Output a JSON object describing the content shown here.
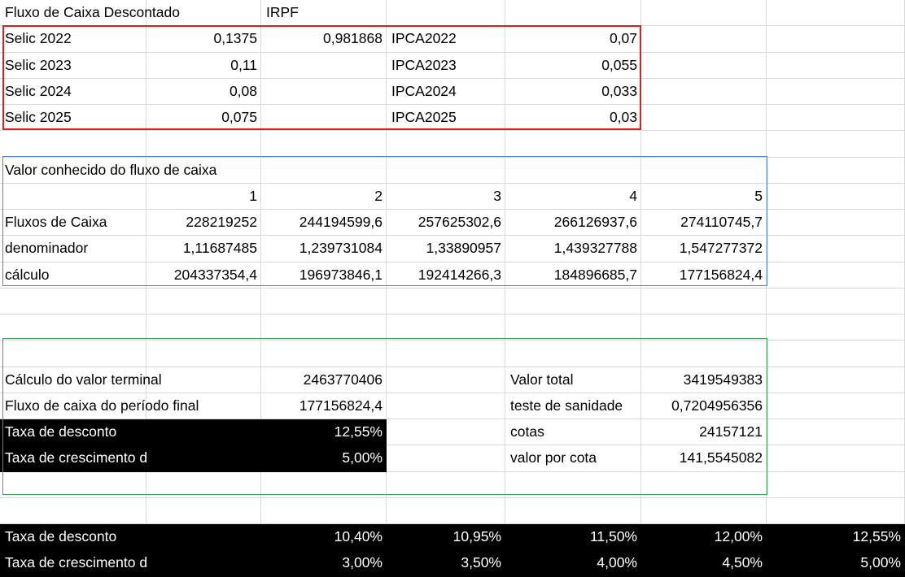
{
  "sheet": {
    "r1": {
      "a": "Fluxo de Caixa Descontado",
      "c": "IRPF"
    },
    "rates": [
      {
        "label": "Selic 2022",
        "value": "0,1375",
        "irpf": "0,981868",
        "ipca_label": "IPCA2022",
        "ipca_value": "0,07"
      },
      {
        "label": "Selic 2023",
        "value": "0,11",
        "irpf": "",
        "ipca_label": "IPCA2023",
        "ipca_value": "0,055"
      },
      {
        "label": "Selic 2024",
        "value": "0,08",
        "irpf": "",
        "ipca_label": "IPCA2024",
        "ipca_value": "0,033"
      },
      {
        "label": "Selic 2025",
        "value": "0,075",
        "irpf": "",
        "ipca_label": "IPCA2025",
        "ipca_value": "0,03"
      }
    ],
    "cashflow": {
      "title": "Valor conhecido do fluxo de caixa",
      "periods": [
        "1",
        "2",
        "3",
        "4",
        "5"
      ],
      "rows": [
        {
          "label": "Fluxos de Caixa",
          "values": [
            "228219252",
            "244194599,6",
            "257625302,6",
            "266126937,6",
            "274110745,7"
          ]
        },
        {
          "label": "denominador",
          "values": [
            "1,11687485",
            "1,239731084",
            "1,33890957",
            "1,439327788",
            "1,547277372"
          ]
        },
        {
          "label": "cálculo",
          "values": [
            "204337354,4",
            "196973846,1",
            "192414266,3",
            "184896685,7",
            "177156824,4"
          ]
        }
      ]
    },
    "terminal": {
      "rows": [
        {
          "label": "Cálculo do valor terminal",
          "value": "2463770406",
          "right_label": "Valor total",
          "right_value": "3419549383"
        },
        {
          "label": "Fluxo de caixa do período final",
          "value": "177156824,4",
          "right_label": "teste de sanidade",
          "right_value": "0,7204956356"
        },
        {
          "label": "Taxa de desconto",
          "value": "12,55%",
          "right_label": "cotas",
          "right_value": "24157121"
        },
        {
          "label": "Taxa de crescimento do caixa",
          "value": "5,00%",
          "right_label": "valor por cota",
          "right_value": "141,5545082"
        }
      ]
    },
    "scenarios": {
      "discount_label": "Taxa de desconto",
      "discount_values": [
        "10,40%",
        "10,95%",
        "11,50%",
        "12,00%",
        "12,55%"
      ],
      "growth_label": "Taxa de crescimento do caixa",
      "growth_values": [
        "3,00%",
        "3,50%",
        "4,00%",
        "4,50%",
        "5,00%"
      ]
    }
  },
  "colors": {
    "frame_rates": "#e21d1d",
    "frame_cashflow": "#4a86d8",
    "frame_terminal": "#3aa655",
    "highlight_bg": "#000000",
    "gridline": "#d9d9d9"
  }
}
